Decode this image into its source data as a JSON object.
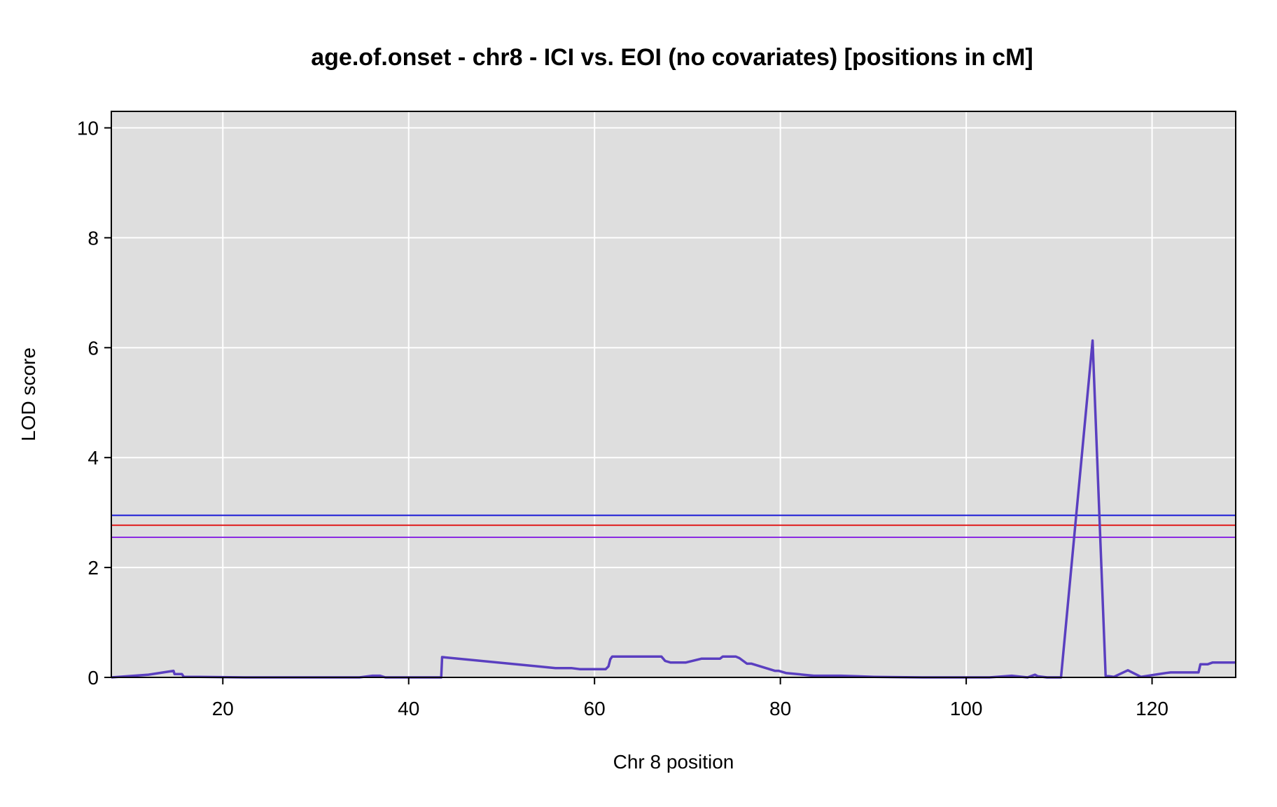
{
  "chart_data": {
    "type": "line",
    "title": "age.of.onset - chr8 - ICI vs. EOI (no covariates) [positions in cM]",
    "xlabel": "Chr 8 position",
    "ylabel": "LOD score",
    "xlim": [
      8,
      129
    ],
    "ylim": [
      0,
      10.3
    ],
    "x_ticks": [
      20,
      40,
      60,
      80,
      100,
      120
    ],
    "y_ticks": [
      0,
      2,
      4,
      6,
      8,
      10
    ],
    "x_tick_labels": [
      "20",
      "40",
      "60",
      "80",
      "100",
      "120"
    ],
    "y_tick_labels": [
      "0",
      "2",
      "4",
      "6",
      "8",
      "10"
    ],
    "grid": true,
    "legend": "none",
    "background_color": "#dedede",
    "grid_color": "#ffffff",
    "series": [
      {
        "color": "#5a3fc0",
        "x": [
          8,
          12,
          14.7,
          14.8,
          15.6,
          15.8,
          17.5,
          22.4,
          24.8,
          31.0,
          34.7,
          36.1,
          36.9,
          37.5,
          43.5,
          43.6,
          55.8,
          57.5,
          58.4,
          61.2,
          61.5,
          61.7,
          61.9,
          67.2,
          67.6,
          68.2,
          69.8,
          71.5,
          73.5,
          73.8,
          75.2,
          75.6,
          76.4,
          76.9,
          79.4,
          79.8,
          80.6,
          83.6,
          84.9,
          86.5,
          88.3,
          90.1,
          95.3,
          98.2,
          99.8,
          101.2,
          102.5,
          104.9,
          106.6,
          107.4,
          107.7,
          108.7,
          110.2,
          113.6,
          115.0,
          115.9,
          117.4,
          118.8,
          121.5,
          122.0,
          125.0,
          125.2,
          126.0,
          126.5,
          129.0
        ],
        "y": [
          0,
          0.05,
          0.12,
          0.06,
          0.06,
          0.01,
          0.01,
          0,
          0,
          0,
          0,
          0.03,
          0.03,
          0,
          0,
          0.37,
          0.17,
          0.17,
          0.15,
          0.15,
          0.2,
          0.33,
          0.38,
          0.38,
          0.3,
          0.27,
          0.27,
          0.34,
          0.34,
          0.38,
          0.38,
          0.35,
          0.25,
          0.25,
          0.12,
          0.12,
          0.08,
          0.03,
          0.03,
          0.03,
          0.02,
          0.01,
          0,
          0,
          0,
          0,
          0,
          0.03,
          0,
          0.05,
          0.02,
          0,
          0,
          6.13,
          0.03,
          0.01,
          0.13,
          0.01,
          0.08,
          0.09,
          0.09,
          0.24,
          0.24,
          0.27,
          0.27
        ]
      }
    ],
    "threshold_lines": [
      {
        "y": 2.95,
        "color": "#1a1ad6"
      },
      {
        "y": 2.77,
        "color": "#e01a1a"
      },
      {
        "y": 2.55,
        "color": "#8a2be2"
      }
    ]
  }
}
